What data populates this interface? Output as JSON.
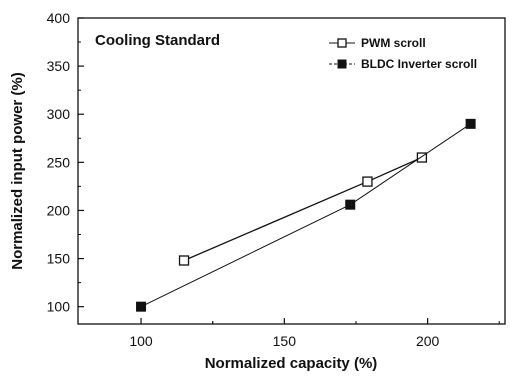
{
  "chart_data": {
    "type": "line",
    "annotation": "Cooling Standard",
    "xlabel": "Normalized capacity (%)",
    "ylabel": "Normalized input power (%)",
    "xlim": [
      78,
      227
    ],
    "ylim": [
      82,
      400
    ],
    "xticks": [
      100,
      150,
      200
    ],
    "yticks": [
      100,
      150,
      200,
      250,
      300,
      350,
      400
    ],
    "grid": false,
    "legend_position": "top-right",
    "series": [
      {
        "name": "PWM scroll",
        "marker": "open-square",
        "color": "#111111",
        "x": [
          115,
          179,
          198
        ],
        "y": [
          148,
          230,
          255
        ]
      },
      {
        "name": "BLDC Inverter scroll",
        "marker": "filled-square",
        "color": "#111111",
        "x": [
          100,
          173,
          215
        ],
        "y": [
          100,
          206,
          290
        ]
      }
    ]
  }
}
